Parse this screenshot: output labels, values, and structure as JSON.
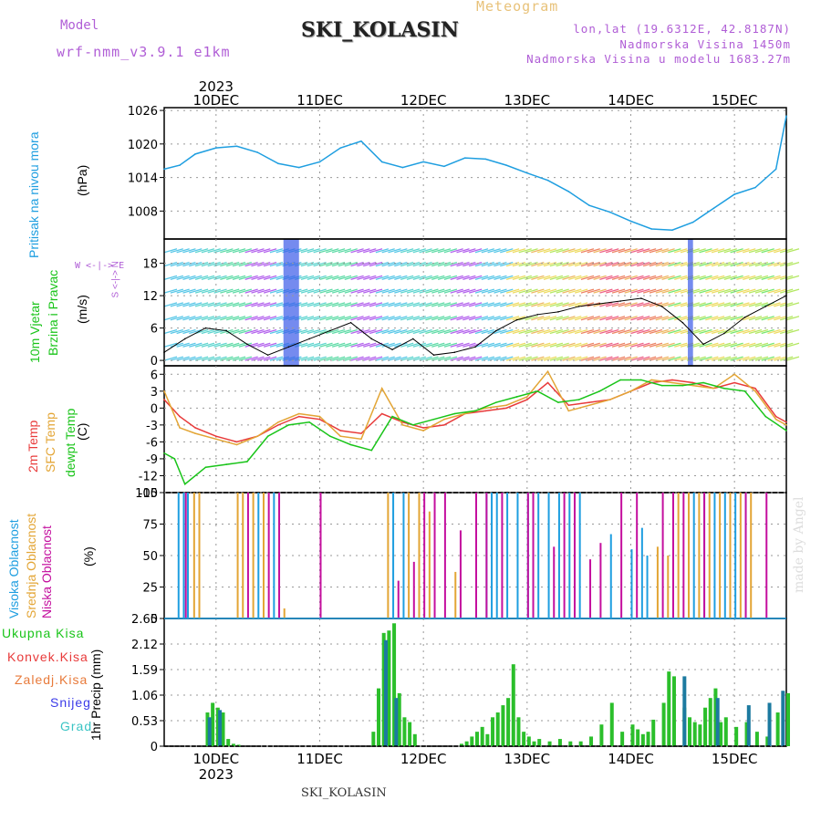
{
  "header": {
    "title": "SKI_KOLASIN",
    "meteogram_label": "Meteogram",
    "model_label": "Model",
    "model_name": "wrf-nmm_v3.9.1 e1km",
    "location_lines": [
      "lon,lat (19.6312E, 42.8187N)",
      "Nadmorska Visina 1450m",
      "Nadmorska Visina u modelu 1683.27m"
    ],
    "bottom_station": "SKI_KOLASIN",
    "watermark": "made by Angel"
  },
  "panel_labels": {
    "pressure": {
      "lines": [
        "Pritisak na nivou mora"
      ],
      "unit": "(hPa)"
    },
    "wind": {
      "lines": [
        "10m Vjetar",
        "Brzina i Pravac"
      ],
      "unit": "(m/s)",
      "compass": "W <-|-> E",
      "compass_vert": "S <-|-> N"
    },
    "temp": {
      "lines": [
        "2m Temp",
        "SFC Temp",
        "dewpt Temp"
      ],
      "unit": "(C)"
    },
    "cloud": {
      "lines": [
        "Visoka Oblacnost",
        "Srednja Oblacnost",
        "Niska Oblacnost"
      ],
      "unit": "(%)"
    },
    "precip": {
      "legend": [
        "Ukupna Kisa",
        "Konvek.Kisa",
        "Zaledj.Kisa",
        "Snijeg",
        "Grad"
      ],
      "ylabel": "1hr Precip (mm)"
    }
  },
  "colors": {
    "pressure": "#1e9ee0",
    "temp2m": "#e83a3a",
    "sfc": "#e3a535",
    "dewpt": "#19c419",
    "high_cloud": "#1e9ee0",
    "mid_cloud": "#e3a535",
    "low_cloud": "#c40f9e",
    "rain": "#2bbf2b",
    "snow": "#1c7aa0",
    "legend_total": "#19c419",
    "legend_conv": "#e83a3a",
    "legend_frz": "#e87a3a",
    "legend_snow": "#3a3ae8",
    "legend_grad": "#3ac4c4"
  },
  "chart_data": [
    {
      "type": "line",
      "title": "",
      "ylabel": "(hPa)",
      "ylim": [
        1003,
        1026.5
      ],
      "yticks": [
        1008,
        1014,
        1020,
        1026
      ],
      "x_axis": {
        "type": "date",
        "unit": "day",
        "start": "2023-12-09T12:00",
        "end": "2023-12-15T12:00",
        "ticks": [
          "10DEC",
          "11DEC",
          "12DEC",
          "13DEC",
          "14DEC",
          "15DEC"
        ],
        "year": "2023"
      },
      "series": [
        {
          "name": "Pritisak na nivou mora",
          "x": [
            0,
            0.15,
            0.3,
            0.5,
            0.7,
            0.9,
            1.1,
            1.3,
            1.5,
            1.7,
            1.9,
            2.1,
            2.3,
            2.5,
            2.7,
            2.9,
            3.1,
            3.3,
            3.5,
            3.7,
            3.9,
            4.1,
            4.3,
            4.5,
            4.7,
            4.9,
            5.1,
            5.3,
            5.5,
            5.7,
            5.9,
            6.0
          ],
          "y": [
            1015.5,
            1016.2,
            1018.2,
            1019.3,
            1019.6,
            1018.5,
            1016.5,
            1015.8,
            1016.8,
            1019.3,
            1020.5,
            1016.8,
            1015.8,
            1016.8,
            1016,
            1017.5,
            1017.3,
            1016.2,
            1014.8,
            1013.5,
            1011.5,
            1009,
            1007.8,
            1006.2,
            1004.8,
            1004.6,
            1006,
            1008.5,
            1011,
            1012.2,
            1015.5,
            1025
          ]
        }
      ]
    },
    {
      "type": "line",
      "title": "",
      "ylabel": "(m/s)",
      "ylim": [
        -1,
        22.5
      ],
      "yticks": [
        0,
        6,
        12,
        18
      ],
      "series": [
        {
          "name": "10m Vjetar",
          "x": [
            0,
            0.2,
            0.4,
            0.6,
            0.8,
            1.0,
            1.2,
            1.4,
            1.6,
            1.8,
            2.0,
            2.2,
            2.4,
            2.6,
            2.8,
            3.0,
            3.2,
            3.4,
            3.6,
            3.8,
            4.0,
            4.2,
            4.4,
            4.6,
            4.8,
            5.0,
            5.2,
            5.4,
            5.6,
            5.8,
            6.0
          ],
          "y": [
            1.5,
            4,
            6,
            5.5,
            3,
            1,
            2.5,
            4,
            5.5,
            7,
            4,
            2,
            4,
            1,
            1.5,
            2.5,
            5.5,
            7.5,
            8.5,
            9,
            10,
            10.5,
            11,
            11.5,
            10,
            7,
            3,
            5,
            8,
            10,
            12
          ]
        }
      ]
    },
    {
      "type": "line",
      "title": "",
      "ylabel": "(C)",
      "ylim": [
        -15,
        7.5
      ],
      "yticks": [
        -15,
        -12,
        -9,
        -6,
        -3,
        0,
        3,
        6
      ],
      "series": [
        {
          "name": "2m Temp",
          "x": [
            0,
            0.15,
            0.3,
            0.5,
            0.7,
            0.9,
            1.1,
            1.3,
            1.5,
            1.7,
            1.9,
            2.1,
            2.3,
            2.5,
            2.7,
            2.9,
            3.1,
            3.3,
            3.5,
            3.7,
            3.9,
            4.1,
            4.3,
            4.5,
            4.7,
            4.9,
            5.1,
            5.3,
            5.5,
            5.7,
            5.9,
            6.0
          ],
          "y": [
            1.5,
            -1.5,
            -3.5,
            -5,
            -6,
            -5,
            -3,
            -1.5,
            -2,
            -4,
            -4.5,
            -1,
            -2.5,
            -3.5,
            -3,
            -1,
            -0.5,
            0,
            1.5,
            4.5,
            0.5,
            1,
            1.5,
            3,
            4.5,
            5,
            4.5,
            3.5,
            4.5,
            3.5,
            -1.5,
            -2.5
          ]
        },
        {
          "name": "SFC Temp",
          "x": [
            0,
            0.15,
            0.3,
            0.5,
            0.7,
            0.9,
            1.1,
            1.3,
            1.5,
            1.7,
            1.9,
            2.1,
            2.3,
            2.5,
            2.7,
            2.9,
            3.1,
            3.3,
            3.5,
            3.7,
            3.9,
            4.1,
            4.3,
            4.5,
            4.7,
            4.9,
            5.1,
            5.3,
            5.5,
            5.7,
            5.9,
            6.0
          ],
          "y": [
            3,
            -3.5,
            -4.5,
            -5.5,
            -6.5,
            -5,
            -2.5,
            -1,
            -1.5,
            -5,
            -5.5,
            3.5,
            -3,
            -4,
            -2,
            -1,
            0,
            0.5,
            2,
            6.5,
            -0.5,
            0.5,
            1.5,
            3,
            5,
            4.5,
            4,
            3.5,
            6,
            3,
            -2,
            -3
          ]
        },
        {
          "name": "dewpt Temp",
          "x": [
            0,
            0.1,
            0.2,
            0.4,
            0.6,
            0.8,
            1.0,
            1.2,
            1.4,
            1.6,
            1.8,
            2.0,
            2.2,
            2.4,
            2.6,
            2.8,
            3.0,
            3.2,
            3.4,
            3.6,
            3.8,
            4.0,
            4.2,
            4.4,
            4.6,
            4.8,
            5.0,
            5.2,
            5.4,
            5.6,
            5.8,
            6.0
          ],
          "y": [
            -8,
            -9,
            -13.5,
            -10.5,
            -10,
            -9.5,
            -5,
            -3,
            -2.5,
            -5,
            -6.5,
            -7.5,
            -1.5,
            -3,
            -2,
            -1,
            -0.5,
            1,
            2,
            3,
            1,
            1.5,
            3,
            5,
            5,
            4,
            4,
            4.5,
            3.5,
            3,
            -1.5,
            -4
          ]
        }
      ]
    },
    {
      "type": "bar",
      "title": "",
      "ylabel": "(%)",
      "ylim": [
        0,
        100
      ],
      "yticks": [
        0,
        25,
        50,
        75,
        100
      ],
      "series": [
        {
          "name": "Visoka Oblacnost",
          "x": [
            0.13,
            0.18,
            0.22,
            0.9,
            1.05,
            2.2,
            2.3,
            3.1,
            3.15,
            3.2,
            3.3,
            3.4,
            3.5,
            3.6,
            3.7,
            3.8,
            3.9,
            4.0,
            4.3,
            4.5,
            4.6,
            4.65,
            5.1,
            5.2,
            5.3,
            5.4,
            5.5,
            5.6
          ],
          "values": [
            100,
            100,
            100,
            100,
            100,
            100,
            100,
            100,
            100,
            100,
            100,
            100,
            100,
            100,
            100,
            100,
            100,
            100,
            67,
            55,
            72,
            50,
            100,
            100,
            100,
            100,
            100,
            100
          ]
        },
        {
          "name": "Srednja Oblacnost",
          "x": [
            0.28,
            0.33,
            0.7,
            0.75,
            0.85,
            0.95,
            1.15,
            2.15,
            2.35,
            2.45,
            2.55,
            2.8,
            4.75,
            4.85,
            4.95,
            5.05,
            5.15,
            5.25,
            5.35,
            5.45,
            5.55,
            5.65
          ],
          "values": [
            100,
            100,
            100,
            100,
            100,
            100,
            8,
            100,
            100,
            100,
            85,
            37,
            57,
            50,
            100,
            100,
            100,
            100,
            100,
            100,
            100,
            100
          ]
        },
        {
          "name": "Niska Oblacnost",
          "x": [
            0.2,
            0.8,
            1.0,
            1.1,
            1.5,
            2.25,
            2.4,
            2.5,
            2.6,
            2.7,
            2.85,
            3.0,
            3.1,
            3.25,
            3.5,
            3.55,
            3.75,
            3.85,
            3.95,
            4.1,
            4.2,
            4.4,
            4.55,
            4.8,
            4.9,
            5.0,
            5.2,
            5.6,
            5.8
          ],
          "values": [
            100,
            100,
            100,
            100,
            100,
            30,
            45,
            100,
            100,
            100,
            70,
            100,
            100,
            100,
            100,
            100,
            57,
            100,
            100,
            47,
            60,
            100,
            100,
            100,
            100,
            100,
            100,
            100,
            100
          ]
        }
      ]
    },
    {
      "type": "bar",
      "title": "",
      "ylabel": "1hr Precip (mm)",
      "ylim": [
        0,
        2.65
      ],
      "yticks": [
        0,
        0.53,
        1.06,
        1.59,
        2.12,
        2.65
      ],
      "series": [
        {
          "name": "Ukupna Kisa",
          "x": [
            0.4,
            0.45,
            0.5,
            0.55,
            0.6,
            0.65,
            0.7,
            2.0,
            2.05,
            2.1,
            2.15,
            2.2,
            2.25,
            2.3,
            2.35,
            2.4,
            2.85,
            2.9,
            2.95,
            3.0,
            3.05,
            3.1,
            3.15,
            3.2,
            3.25,
            3.3,
            3.35,
            3.4,
            3.45,
            3.5,
            3.55,
            3.6,
            3.7,
            3.8,
            3.9,
            4.0,
            4.1,
            4.2,
            4.3,
            4.4,
            4.5,
            4.55,
            4.6,
            4.65,
            4.7,
            4.8,
            4.85,
            4.9,
            5.0,
            5.05,
            5.1,
            5.15,
            5.2,
            5.25,
            5.3,
            5.35,
            5.4,
            5.5,
            5.6,
            5.7,
            5.8,
            5.9,
            6.0
          ],
          "values": [
            0.7,
            0.9,
            0.8,
            0.7,
            0.15,
            0.05,
            0.03,
            0.3,
            1.2,
            2.35,
            2.4,
            2.55,
            1.1,
            0.6,
            0.5,
            0.25,
            0.05,
            0.1,
            0.2,
            0.3,
            0.4,
            0.25,
            0.6,
            0.7,
            0.85,
            1.0,
            1.7,
            0.6,
            0.3,
            0.2,
            0.1,
            0.15,
            0.1,
            0.15,
            0.1,
            0.1,
            0.2,
            0.45,
            0.9,
            0.3,
            0.45,
            0.35,
            0.25,
            0.3,
            0.55,
            0.9,
            1.55,
            1.45,
            0.8,
            0.6,
            0.5,
            0.45,
            0.8,
            1.0,
            1.2,
            0.5,
            0.6,
            0.4,
            0.5,
            0.3,
            0.2,
            0.7,
            1.1
          ]
        },
        {
          "name": "Snijeg",
          "x": [
            0.42,
            0.52,
            2.12,
            2.22,
            5.0,
            5.32,
            5.62,
            5.82,
            5.95
          ],
          "values": [
            0.6,
            0.75,
            2.2,
            1.0,
            1.45,
            1.0,
            0.85,
            0.9,
            1.15
          ]
        }
      ]
    }
  ]
}
